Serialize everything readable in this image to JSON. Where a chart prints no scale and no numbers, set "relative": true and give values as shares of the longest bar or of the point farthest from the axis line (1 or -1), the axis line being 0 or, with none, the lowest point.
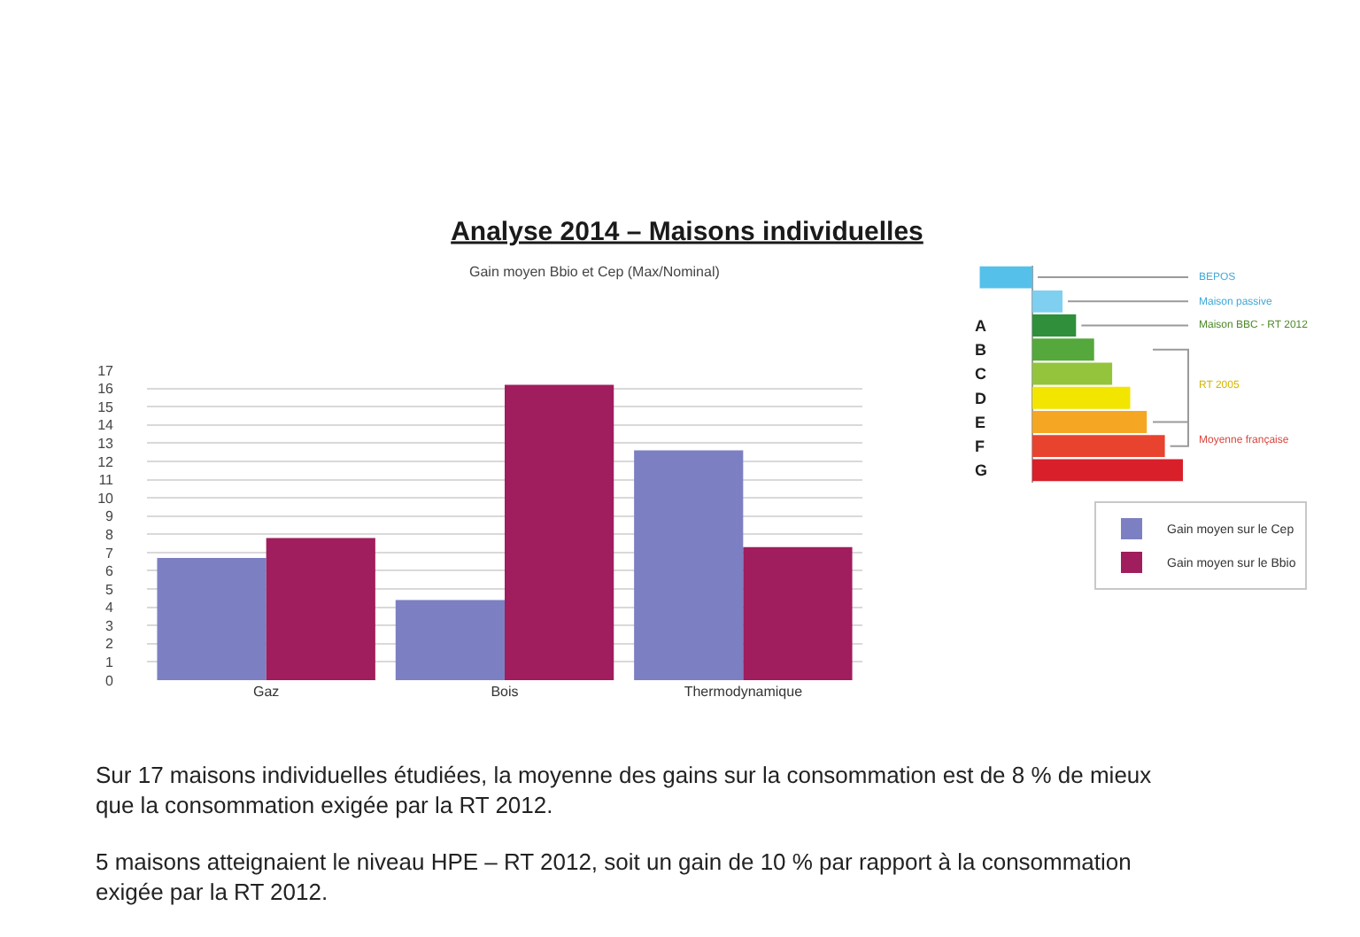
{
  "chart_data": [
    {
      "type": "bar",
      "title": "Analyse 2014 – Maisons individuelles",
      "subtitle": "Gain moyen Bbio et Cep (Max/Nominal)",
      "categories": [
        "Gaz",
        "Bois",
        "Thermodynamique"
      ],
      "series": [
        {
          "name": "Gain moyen sur le Cep",
          "color": "#7c80c2",
          "values": [
            6.7,
            4.4,
            12.6
          ]
        },
        {
          "name": "Gain moyen sur le Bbio",
          "color": "#a01d5e",
          "values": [
            7.8,
            16.2,
            7.3
          ]
        }
      ],
      "ylim": [
        0,
        17
      ],
      "yticks": [
        0,
        1,
        2,
        3,
        4,
        5,
        6,
        7,
        8,
        9,
        10,
        11,
        12,
        13,
        14,
        15,
        16,
        17
      ],
      "grid": "y",
      "legend": "right",
      "annotations": [
        "Sur 17 maisons individuelles étudiées, la moyenne des gains sur la consommation est de 8 % de mieux que la consommation exigée par la RT 2012.",
        "5 maisons atteignaient le niveau HPE – RT 2012, soit un gain de 10 % par rapport à la consommation exigée par la RT 2012."
      ]
    },
    {
      "type": "bar",
      "orientation": "horizontal",
      "relative": true,
      "tick_labels": "y",
      "categories": [
        null,
        null,
        "A",
        "B",
        "C",
        "D",
        "E",
        "F",
        "G"
      ],
      "values": [
        -0.35,
        0.2,
        0.29,
        0.41,
        0.53,
        0.65,
        0.76,
        0.88,
        1
      ],
      "colors": [
        "#55c1ea",
        "#7fd0f0",
        "#2f8f3a",
        "#55a83c",
        "#94c43c",
        "#f2e500",
        "#f5a623",
        "#e8432e",
        "#d81f2a"
      ],
      "annotations": [
        "BEPOS",
        "Maison passive",
        "Maison BBC - RT 2012",
        "RT 2005",
        "Moyenne française"
      ]
    }
  ]
}
